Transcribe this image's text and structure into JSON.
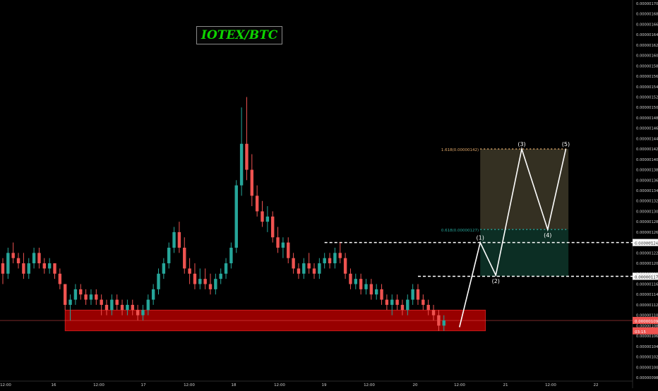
{
  "chart_data": {
    "type": "candlestick",
    "title": "IOTEX/BTC",
    "colors": {
      "up": "#26a69a",
      "down": "#ef5350",
      "zone": "#b30000",
      "price": "#ef5350"
    },
    "y_axis": {
      "side": "right",
      "min": 9.8e-07,
      "max": 1.7e-06,
      "step": 2e-08
    },
    "x_ticks": [
      "12:00",
      "16",
      "12:00",
      "17",
      "12:00",
      "18",
      "12:00",
      "19",
      "12:00",
      "20",
      "12:00",
      "21",
      "12:00",
      "22"
    ],
    "ohlc": [
      [
        1.2e-06,
        1.21e-06,
        1.16e-06,
        1.18e-06
      ],
      [
        1.18e-06,
        1.23e-06,
        1.17e-06,
        1.22e-06
      ],
      [
        1.22e-06,
        1.24e-06,
        1.2e-06,
        1.21e-06
      ],
      [
        1.21e-06,
        1.22e-06,
        1.19e-06,
        1.2e-06
      ],
      [
        1.2e-06,
        1.22e-06,
        1.17e-06,
        1.18e-06
      ],
      [
        1.18e-06,
        1.21e-06,
        1.17e-06,
        1.2e-06
      ],
      [
        1.2e-06,
        1.23e-06,
        1.19e-06,
        1.22e-06
      ],
      [
        1.22e-06,
        1.23e-06,
        1.19e-06,
        1.2e-06
      ],
      [
        1.2e-06,
        1.21e-06,
        1.18e-06,
        1.19e-06
      ],
      [
        1.19e-06,
        1.21e-06,
        1.18e-06,
        1.2e-06
      ],
      [
        1.2e-06,
        1.2e-06,
        1.17e-06,
        1.18e-06
      ],
      [
        1.18e-06,
        1.19e-06,
        1.15e-06,
        1.16e-06
      ],
      [
        1.16e-06,
        1.16e-06,
        1.11e-06,
        1.12e-06
      ],
      [
        1.12e-06,
        1.14e-06,
        1.09e-06,
        1.13e-06
      ],
      [
        1.13e-06,
        1.16e-06,
        1.12e-06,
        1.15e-06
      ],
      [
        1.15e-06,
        1.16e-06,
        1.13e-06,
        1.14e-06
      ],
      [
        1.14e-06,
        1.15e-06,
        1.12e-06,
        1.13e-06
      ],
      [
        1.13e-06,
        1.15e-06,
        1.12e-06,
        1.14e-06
      ],
      [
        1.14e-06,
        1.15e-06,
        1.12e-06,
        1.13e-06
      ],
      [
        1.13e-06,
        1.14e-06,
        1.1e-06,
        1.12e-06
      ],
      [
        1.12e-06,
        1.13e-06,
        1.1e-06,
        1.11e-06
      ],
      [
        1.11e-06,
        1.14e-06,
        1.1e-06,
        1.13e-06
      ],
      [
        1.13e-06,
        1.14e-06,
        1.11e-06,
        1.12e-06
      ],
      [
        1.12e-06,
        1.13e-06,
        1.1e-06,
        1.11e-06
      ],
      [
        1.11e-06,
        1.13e-06,
        1.1e-06,
        1.12e-06
      ],
      [
        1.12e-06,
        1.13e-06,
        1.1e-06,
        1.11e-06
      ],
      [
        1.11e-06,
        1.12e-06,
        1.09e-06,
        1.1e-06
      ],
      [
        1.1e-06,
        1.12e-06,
        1.09e-06,
        1.11e-06
      ],
      [
        1.11e-06,
        1.14e-06,
        1.1e-06,
        1.13e-06
      ],
      [
        1.13e-06,
        1.16e-06,
        1.12e-06,
        1.15e-06
      ],
      [
        1.15e-06,
        1.19e-06,
        1.14e-06,
        1.18e-06
      ],
      [
        1.18e-06,
        1.21e-06,
        1.17e-06,
        1.2e-06
      ],
      [
        1.2e-06,
        1.24e-06,
        1.19e-06,
        1.23e-06
      ],
      [
        1.23e-06,
        1.27e-06,
        1.22e-06,
        1.26e-06
      ],
      [
        1.26e-06,
        1.28e-06,
        1.22e-06,
        1.23e-06
      ],
      [
        1.23e-06,
        1.25e-06,
        1.18e-06,
        1.19e-06
      ],
      [
        1.19e-06,
        1.21e-06,
        1.16e-06,
        1.18e-06
      ],
      [
        1.18e-06,
        1.2e-06,
        1.15e-06,
        1.16e-06
      ],
      [
        1.16e-06,
        1.19e-06,
        1.15e-06,
        1.17e-06
      ],
      [
        1.17e-06,
        1.19e-06,
        1.15e-06,
        1.16e-06
      ],
      [
        1.16e-06,
        1.18e-06,
        1.14e-06,
        1.15e-06
      ],
      [
        1.15e-06,
        1.18e-06,
        1.14e-06,
        1.17e-06
      ],
      [
        1.17e-06,
        1.19e-06,
        1.16e-06,
        1.18e-06
      ],
      [
        1.18e-06,
        1.21e-06,
        1.17e-06,
        1.2e-06
      ],
      [
        1.2e-06,
        1.24e-06,
        1.19e-06,
        1.23e-06
      ],
      [
        1.23e-06,
        1.36e-06,
        1.22e-06,
        1.35e-06
      ],
      [
        1.35e-06,
        1.5e-06,
        1.33e-06,
        1.43e-06
      ],
      [
        1.43e-06,
        1.52e-06,
        1.36e-06,
        1.38e-06
      ],
      [
        1.38e-06,
        1.41e-06,
        1.31e-06,
        1.33e-06
      ],
      [
        1.33e-06,
        1.35e-06,
        1.29e-06,
        1.3e-06
      ],
      [
        1.3e-06,
        1.32e-06,
        1.27e-06,
        1.28e-06
      ],
      [
        1.28e-06,
        1.31e-06,
        1.26e-06,
        1.29e-06
      ],
      [
        1.29e-06,
        1.3e-06,
        1.24e-06,
        1.25e-06
      ],
      [
        1.25e-06,
        1.27e-06,
        1.22e-06,
        1.23e-06
      ],
      [
        1.23e-06,
        1.25e-06,
        1.21e-06,
        1.24e-06
      ],
      [
        1.24e-06,
        1.25e-06,
        1.2e-06,
        1.21e-06
      ],
      [
        1.21e-06,
        1.22e-06,
        1.18e-06,
        1.19e-06
      ],
      [
        1.19e-06,
        1.2e-06,
        1.17e-06,
        1.18e-06
      ],
      [
        1.18e-06,
        1.21e-06,
        1.17e-06,
        1.2e-06
      ],
      [
        1.2e-06,
        1.22e-06,
        1.18e-06,
        1.19e-06
      ],
      [
        1.19e-06,
        1.2e-06,
        1.17e-06,
        1.18e-06
      ],
      [
        1.18e-06,
        1.21e-06,
        1.17e-06,
        1.2e-06
      ],
      [
        1.2e-06,
        1.22e-06,
        1.19e-06,
        1.21e-06
      ],
      [
        1.21e-06,
        1.22e-06,
        1.19e-06,
        1.2e-06
      ],
      [
        1.2e-06,
        1.23e-06,
        1.19e-06,
        1.22e-06
      ],
      [
        1.22e-06,
        1.24e-06,
        1.2e-06,
        1.21e-06
      ],
      [
        1.21e-06,
        1.22e-06,
        1.17e-06,
        1.18e-06
      ],
      [
        1.18e-06,
        1.19e-06,
        1.15e-06,
        1.16e-06
      ],
      [
        1.16e-06,
        1.18e-06,
        1.15e-06,
        1.17e-06
      ],
      [
        1.17e-06,
        1.18e-06,
        1.14e-06,
        1.15e-06
      ],
      [
        1.15e-06,
        1.17e-06,
        1.14e-06,
        1.16e-06
      ],
      [
        1.16e-06,
        1.17e-06,
        1.13e-06,
        1.14e-06
      ],
      [
        1.14e-06,
        1.16e-06,
        1.13e-06,
        1.15e-06
      ],
      [
        1.15e-06,
        1.16e-06,
        1.12e-06,
        1.13e-06
      ],
      [
        1.13e-06,
        1.14e-06,
        1.11e-06,
        1.12e-06
      ],
      [
        1.12e-06,
        1.14e-06,
        1.1e-06,
        1.13e-06
      ],
      [
        1.13e-06,
        1.14e-06,
        1.11e-06,
        1.12e-06
      ],
      [
        1.12e-06,
        1.13e-06,
        1.1e-06,
        1.11e-06
      ],
      [
        1.11e-06,
        1.14e-06,
        1.1e-06,
        1.13e-06
      ],
      [
        1.13e-06,
        1.16e-06,
        1.12e-06,
        1.15e-06
      ],
      [
        1.15e-06,
        1.16e-06,
        1.12e-06,
        1.13e-06
      ],
      [
        1.13e-06,
        1.14e-06,
        1.11e-06,
        1.12e-06
      ],
      [
        1.12e-06,
        1.13e-06,
        1.1e-06,
        1.11e-06
      ],
      [
        1.11e-06,
        1.12e-06,
        1.09e-06,
        1.1e-06
      ],
      [
        1.1e-06,
        1.11e-06,
        1.07e-06,
        1.08e-06
      ],
      [
        1.08e-06,
        1.1e-06,
        1.07e-06,
        1.09e-06
      ]
    ],
    "zones": [
      {
        "name": "support-zone",
        "y1": 1.11e-06,
        "y2": 1.07e-06,
        "from_index": 12,
        "to_index": 93,
        "color": "#b30000"
      },
      {
        "name": "target-zone",
        "y1": 1.42e-06,
        "y2": 1.265e-06,
        "from_index": 92,
        "to_index": 109,
        "color": "#3a3526"
      },
      {
        "name": "entry-zone",
        "y1": 1.265e-06,
        "y2": 1.175e-06,
        "from_index": 92,
        "to_index": 109,
        "color": "#0d3328"
      }
    ],
    "levels": [
      {
        "name": "resistance-line-top",
        "value": 1.24e-06,
        "from_index": 62,
        "label": "0.00000124"
      },
      {
        "name": "resistance-line-low",
        "value": 1.175e-06,
        "from_index": 80,
        "label": "0.00000117"
      }
    ],
    "fib_labels": [
      {
        "text": "1.618(0.00000142)",
        "value": 1.42e-06,
        "color": "#e0a86a"
      },
      {
        "text": "0.618(0.00000127)",
        "value": 1.265e-06,
        "color": "#26a69a"
      }
    ],
    "wave_path": [
      {
        "index": 88,
        "value": 1.077e-06,
        "label": ""
      },
      {
        "index": 92,
        "value": 1.24e-06,
        "label": "(1)"
      },
      {
        "index": 95,
        "value": 1.177e-06,
        "label": "(2)"
      },
      {
        "index": 100,
        "value": 1.42e-06,
        "label": "(3)"
      },
      {
        "index": 105,
        "value": 1.265e-06,
        "label": "(4)"
      },
      {
        "index": 108.5,
        "value": 1.42e-06,
        "label": "(5)"
      }
    ],
    "price_labels": [
      {
        "text": "0.00000109",
        "value": 1.09e-06,
        "bg": "#ef5350",
        "fg": "#ffffff"
      },
      {
        "text": "03:15",
        "value": 1.07e-06,
        "bg": "#ef5350",
        "fg": "#ffffff"
      }
    ]
  }
}
